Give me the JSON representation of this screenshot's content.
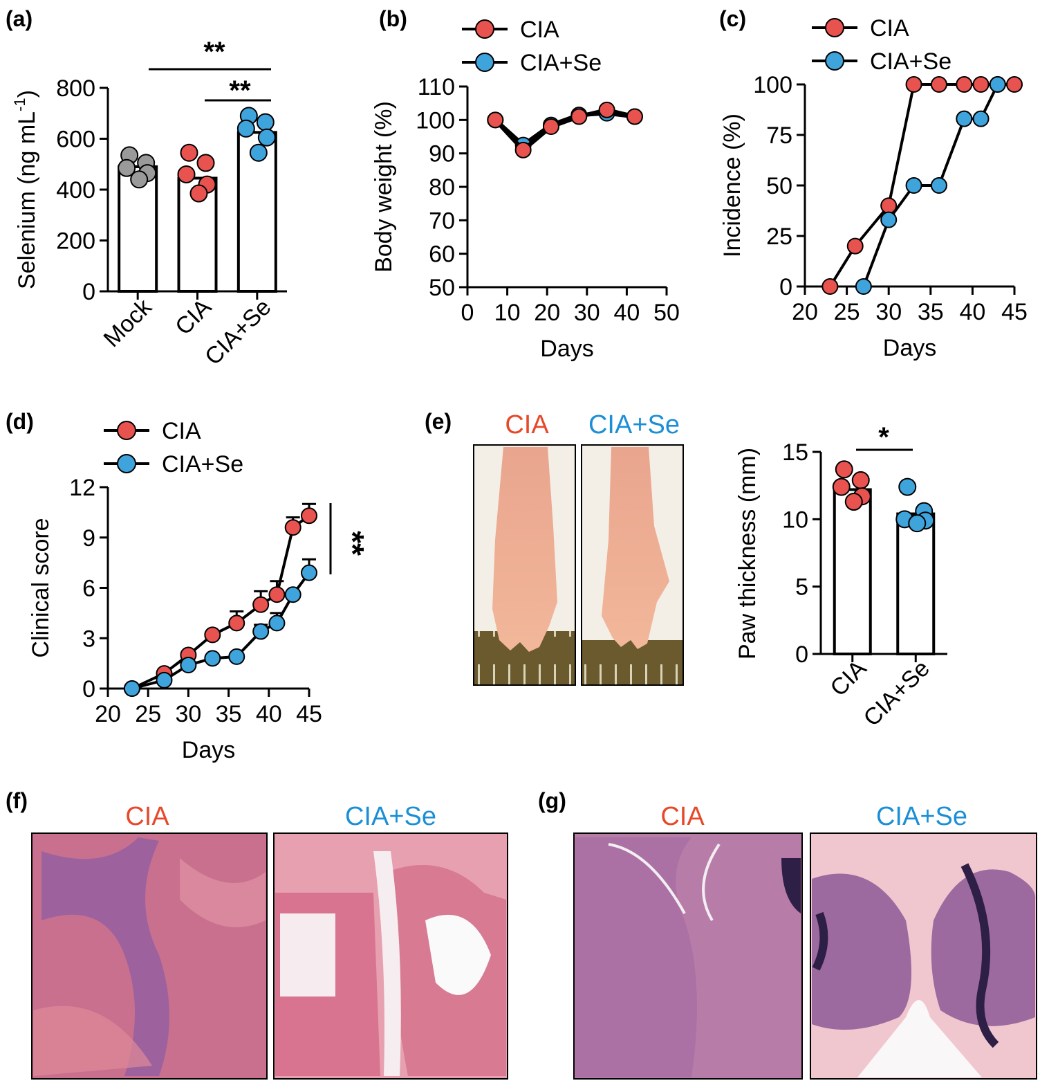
{
  "colors": {
    "cia": "#E8524F",
    "se": "#3FA3DC",
    "mock": "#9A9A9A",
    "cia_text": "#E8482A",
    "se_text": "#1B8FD6"
  },
  "panels": {
    "a": {
      "label": "(a)",
      "sig_top": "**",
      "sig_inner": "**"
    },
    "b": {
      "label": "(b)"
    },
    "c": {
      "label": "(c)"
    },
    "d": {
      "label": "(d)",
      "sig": "**"
    },
    "e": {
      "label": "(e)",
      "photo_left": "CIA",
      "photo_right": "CIA+Se",
      "sig": "*"
    },
    "f": {
      "label": "(f)",
      "left": "CIA",
      "right": "CIA+Se"
    },
    "g": {
      "label": "(g)",
      "left": "CIA",
      "right": "CIA+Se"
    }
  },
  "chart_data": [
    {
      "id": "a",
      "type": "bar",
      "categories": [
        "Mock",
        "CIA",
        "CIA+Se"
      ],
      "values": [
        490,
        445,
        625
      ],
      "points": [
        [
          535,
          505,
          485,
          465,
          440
        ],
        [
          545,
          505,
          460,
          420,
          385
        ],
        [
          690,
          665,
          640,
          605,
          545
        ]
      ],
      "ylabel": "Selenium (ng mL",
      "ylabel_sup": "-1",
      "ylabel_close": ")",
      "ylim": [
        0,
        800
      ],
      "yticks": [
        0,
        200,
        400,
        600,
        800
      ]
    },
    {
      "id": "b",
      "type": "line",
      "xlabel": "Days",
      "ylabel": "Body weight (%)",
      "xlim": [
        0,
        50
      ],
      "ylim": [
        50,
        110
      ],
      "xticks": [
        0,
        10,
        20,
        30,
        40,
        50
      ],
      "yticks": [
        50,
        60,
        70,
        80,
        90,
        100,
        110
      ],
      "series": [
        {
          "name": "CIA",
          "x": [
            7,
            14,
            21,
            28,
            35,
            42
          ],
          "y": [
            100,
            91,
            98,
            101,
            103,
            101
          ]
        },
        {
          "name": "CIA+Se",
          "x": [
            7,
            14,
            21,
            28,
            35,
            42
          ],
          "y": [
            100,
            92.5,
            98.5,
            101.5,
            102,
            101
          ]
        }
      ]
    },
    {
      "id": "c",
      "type": "line",
      "xlabel": "Days",
      "ylabel": "Incidence (%)",
      "xlim": [
        20,
        45
      ],
      "ylim": [
        0,
        100
      ],
      "xticks": [
        20,
        25,
        30,
        35,
        40,
        45
      ],
      "yticks": [
        0,
        25,
        50,
        75,
        100
      ],
      "series": [
        {
          "name": "CIA",
          "x": [
            23,
            26,
            30,
            33,
            36,
            39,
            41,
            43,
            45
          ],
          "y": [
            0,
            20,
            40,
            100,
            100,
            100,
            100,
            100,
            100
          ]
        },
        {
          "name": "CIA+Se",
          "x": [
            27,
            30,
            33,
            36,
            39,
            41,
            43
          ],
          "y": [
            0,
            33,
            50,
            50,
            83,
            83,
            100
          ]
        }
      ]
    },
    {
      "id": "d",
      "type": "line",
      "xlabel": "Days",
      "ylabel": "Clinical score",
      "xlim": [
        20,
        45
      ],
      "ylim": [
        0,
        12
      ],
      "xticks": [
        20,
        25,
        30,
        35,
        40,
        45
      ],
      "yticks": [
        0,
        3,
        6,
        9,
        12
      ],
      "series": [
        {
          "name": "CIA",
          "x": [
            23,
            27,
            30,
            33,
            36,
            39,
            41,
            43,
            45
          ],
          "y": [
            0,
            0.9,
            2.0,
            3.2,
            3.9,
            5.0,
            5.6,
            9.6,
            10.3
          ],
          "err": [
            0,
            0,
            0,
            0,
            0.7,
            0.8,
            0.8,
            0.6,
            0.7
          ]
        },
        {
          "name": "CIA+Se",
          "x": [
            23,
            27,
            30,
            33,
            36,
            39,
            41,
            43,
            45
          ],
          "y": [
            0,
            0.5,
            1.4,
            1.8,
            1.9,
            3.4,
            3.9,
            5.6,
            6.9
          ],
          "err": [
            0,
            0,
            0,
            0,
            0,
            0.4,
            0.6,
            0,
            0.8
          ]
        }
      ]
    },
    {
      "id": "e",
      "type": "bar",
      "categories": [
        "CIA",
        "CIA+Se"
      ],
      "values": [
        12.2,
        10.4
      ],
      "points": [
        [
          13.7,
          12.9,
          12.4,
          11.7,
          11.3
        ],
        [
          12.4,
          10.6,
          10.0,
          9.9,
          9.7
        ]
      ],
      "ylabel": "Paw thickness (mm)",
      "ylim": [
        0,
        15
      ],
      "yticks": [
        0,
        5,
        10,
        15
      ]
    }
  ]
}
